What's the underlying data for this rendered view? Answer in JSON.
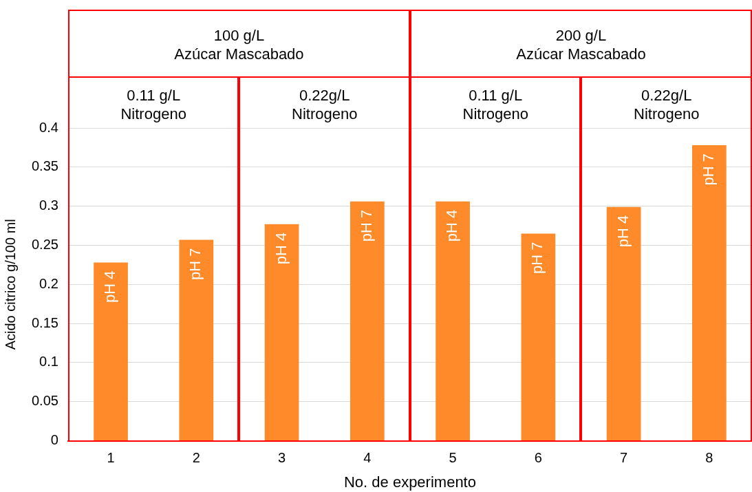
{
  "chart_data": {
    "type": "bar",
    "categories": [
      "1",
      "2",
      "3",
      "4",
      "5",
      "6",
      "7",
      "8"
    ],
    "values": [
      0.228,
      0.257,
      0.277,
      0.306,
      0.306,
      0.265,
      0.299,
      0.378
    ],
    "value_labels": [
      "pH 4",
      "pH 7",
      "pH 4",
      "pH 7",
      "pH 4",
      "pH 7",
      "pH 4",
      "pH 7"
    ],
    "color": "#ff8a2a",
    "xlabel": "No. de experimento",
    "ylabel": "Acido citrico g/100 ml",
    "ylim": [
      0,
      0.4
    ],
    "yticks": [
      0,
      0.05,
      0.1,
      0.15,
      0.2,
      0.25,
      0.3,
      0.35,
      0.4
    ],
    "grid": "y",
    "legend": false,
    "annotations": [
      "100 g/L\nAzúcar Mascabado",
      "200 g/L\nAzúcar Mascabado",
      "0.11 g/L\nNitrogeno",
      "0.22g/L\nNitrogeno",
      "0.11 g/L\nNitrogeno",
      "0.22g/L\nNitrogeno"
    ]
  }
}
